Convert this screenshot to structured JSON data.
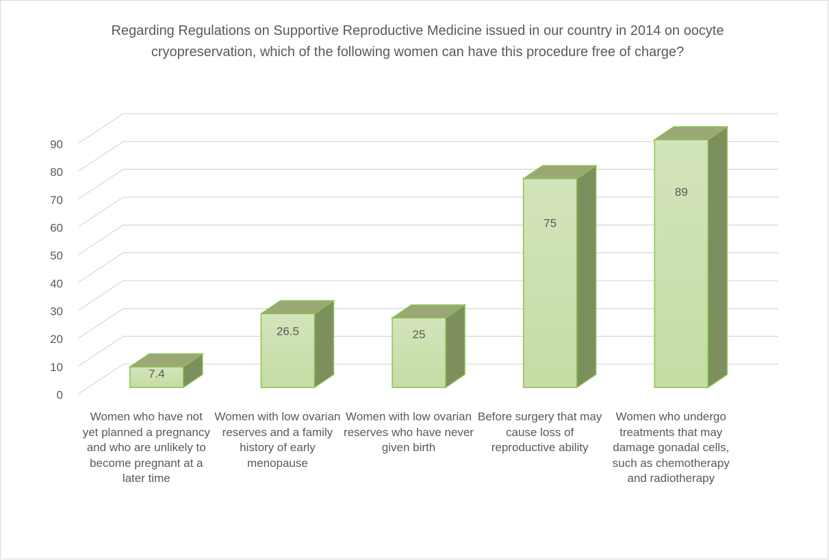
{
  "chart_data": {
    "type": "bar3d",
    "title": "Regarding Regulations on Supportive Reproductive Medicine issued in our country in 2014 on oocyte cryopreservation, which of the following women can have this procedure free of charge?",
    "categories": [
      "Women who have not yet planned a pregnancy and who are unlikely to become pregnant at a later time",
      "Women with low ovarian reserves and a family history of early menopause",
      "Women with low ovarian reserves who have never given birth",
      "Before surgery that may cause loss of reproductive ability",
      "Women who undergo treatments that may damage gonadal cells, such as chemotherapy and radiotherapy"
    ],
    "values": [
      7.4,
      26.5,
      25,
      75,
      89
    ],
    "color": "#c5dca4",
    "ylim": [
      0,
      90
    ],
    "yticks": [
      0,
      10,
      20,
      30,
      40,
      50,
      60,
      70,
      80,
      90
    ],
    "grid": true
  }
}
